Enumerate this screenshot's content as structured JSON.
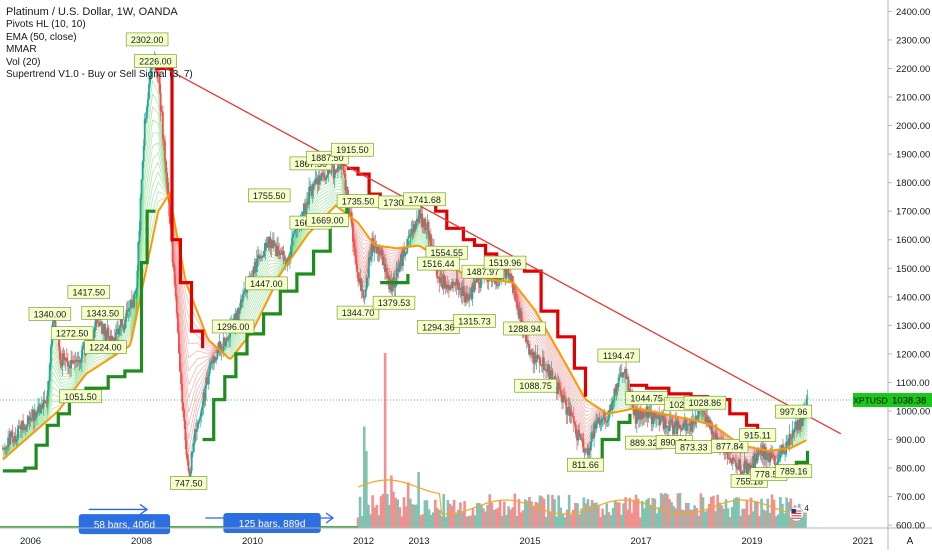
{
  "header": {
    "title": "Platinum / U.S. Dollar, 1W, OANDA",
    "indicators": [
      "Pivots HL (10, 10)",
      "EMA (50, close)",
      "MMAR",
      "Vol (20)",
      "Supertrend V1.0 - Buy or Sell Signal (3, 7)"
    ]
  },
  "colors": {
    "bull": "#26a69a",
    "bear": "#ef5350",
    "supertrend_up": "#1e8c1e",
    "supertrend_down": "#e00000",
    "ema": "#ff9800",
    "trendline": "#e53935",
    "price_line": "#22c922",
    "brand_blue": "#2962ff"
  },
  "chart_data": {
    "type": "candlestick",
    "symbol": "XPTUSD",
    "last_price": "1038.38",
    "price_axis": {
      "ticks": [
        "2400.00",
        "2300.00",
        "2200.00",
        "2100.00",
        "2000.00",
        "1900.00",
        "1800.00",
        "1700.00",
        "1600.00",
        "1500.00",
        "1400.00",
        "1300.00",
        "1200.00",
        "1100.00",
        "1000.00",
        "900.00",
        "800.00",
        "700.00",
        "600.00"
      ],
      "range": [
        590,
        2440
      ]
    },
    "time_axis": {
      "ticks": [
        "2006",
        "2008",
        "2010",
        "2012",
        "2013",
        "2015",
        "2017",
        "2019",
        "2021"
      ],
      "range": [
        2005.45,
        2021.45
      ]
    },
    "price_path": [
      [
        2005.5,
        870
      ],
      [
        2006.3,
        1030
      ],
      [
        2006.4,
        1340
      ],
      [
        2006.55,
        1180
      ],
      [
        2006.8,
        1150
      ],
      [
        2007.0,
        1230
      ],
      [
        2007.2,
        1310
      ],
      [
        2007.5,
        1240
      ],
      [
        2007.9,
        1400
      ],
      [
        2008.05,
        2000
      ],
      [
        2008.2,
        2250
      ],
      [
        2008.3,
        2180
      ],
      [
        2008.5,
        1700
      ],
      [
        2008.75,
        1000
      ],
      [
        2008.85,
        760
      ],
      [
        2009.0,
        960
      ],
      [
        2009.3,
        1190
      ],
      [
        2009.6,
        1280
      ],
      [
        2010.0,
        1480
      ],
      [
        2010.3,
        1600
      ],
      [
        2010.6,
        1520
      ],
      [
        2011.0,
        1750
      ],
      [
        2011.2,
        1820
      ],
      [
        2011.4,
        1830
      ],
      [
        2011.6,
        1870
      ],
      [
        2011.75,
        1700
      ],
      [
        2011.9,
        1480
      ],
      [
        2012.0,
        1400
      ],
      [
        2012.15,
        1580
      ],
      [
        2012.3,
        1560
      ],
      [
        2012.5,
        1420
      ],
      [
        2012.7,
        1540
      ],
      [
        2013.0,
        1680
      ],
      [
        2013.15,
        1640
      ],
      [
        2013.3,
        1500
      ],
      [
        2013.5,
        1430
      ],
      [
        2013.7,
        1440
      ],
      [
        2013.9,
        1380
      ],
      [
        2014.0,
        1440
      ],
      [
        2014.2,
        1480
      ],
      [
        2014.4,
        1460
      ],
      [
        2014.6,
        1500
      ],
      [
        2014.75,
        1400
      ],
      [
        2014.9,
        1250
      ],
      [
        2015.0,
        1200
      ],
      [
        2015.3,
        1150
      ],
      [
        2015.5,
        1080
      ],
      [
        2015.7,
        990
      ],
      [
        2015.9,
        900
      ],
      [
        2016.0,
        840
      ],
      [
        2016.2,
        960
      ],
      [
        2016.4,
        990
      ],
      [
        2016.6,
        1110
      ],
      [
        2016.7,
        1140
      ],
      [
        2016.9,
        980
      ],
      [
        2017.1,
        990
      ],
      [
        2017.4,
        960
      ],
      [
        2017.6,
        940
      ],
      [
        2017.9,
        950
      ],
      [
        2018.1,
        1000
      ],
      [
        2018.3,
        910
      ],
      [
        2018.6,
        850
      ],
      [
        2018.8,
        800
      ],
      [
        2019.0,
        810
      ],
      [
        2019.2,
        860
      ],
      [
        2019.4,
        820
      ],
      [
        2019.6,
        870
      ],
      [
        2019.75,
        940
      ],
      [
        2019.9,
        960
      ],
      [
        2020.0,
        1038
      ]
    ],
    "ema_path": [
      [
        2005.5,
        830
      ],
      [
        2006.5,
        1000
      ],
      [
        2007.0,
        1130
      ],
      [
        2007.8,
        1230
      ],
      [
        2008.3,
        1700
      ],
      [
        2008.5,
        1760
      ],
      [
        2008.8,
        1450
      ],
      [
        2009.2,
        1250
      ],
      [
        2009.6,
        1180
      ],
      [
        2010.0,
        1280
      ],
      [
        2010.5,
        1480
      ],
      [
        2011.0,
        1620
      ],
      [
        2011.5,
        1720
      ],
      [
        2011.9,
        1660
      ],
      [
        2012.2,
        1580
      ],
      [
        2012.6,
        1570
      ],
      [
        2013.0,
        1580
      ],
      [
        2013.4,
        1530
      ],
      [
        2013.8,
        1480
      ],
      [
        2014.3,
        1460
      ],
      [
        2014.7,
        1450
      ],
      [
        2015.1,
        1350
      ],
      [
        2015.6,
        1180
      ],
      [
        2016.0,
        1040
      ],
      [
        2016.4,
        990
      ],
      [
        2016.9,
        1010
      ],
      [
        2017.4,
        990
      ],
      [
        2017.9,
        970
      ],
      [
        2018.3,
        950
      ],
      [
        2018.8,
        880
      ],
      [
        2019.3,
        860
      ],
      [
        2019.7,
        870
      ],
      [
        2020.0,
        900
      ]
    ],
    "supertrend": [
      {
        "trend": "up",
        "points": [
          [
            2005.5,
            790
          ],
          [
            2005.9,
            800
          ],
          [
            2006.1,
            880
          ],
          [
            2006.3,
            950
          ],
          [
            2006.5,
            990
          ],
          [
            2006.7,
            1050
          ],
          [
            2007.0,
            1080
          ],
          [
            2007.4,
            1120
          ],
          [
            2007.7,
            1140
          ],
          [
            2008.0,
            1520
          ],
          [
            2008.1,
            1520
          ],
          [
            2008.1,
            1700
          ],
          [
            2008.25,
            1700
          ]
        ]
      },
      {
        "trend": "down",
        "points": [
          [
            2008.25,
            2200
          ],
          [
            2008.4,
            2200
          ],
          [
            2008.55,
            1600
          ],
          [
            2008.7,
            1450
          ],
          [
            2008.9,
            1280
          ],
          [
            2009.1,
            1220
          ]
        ]
      },
      {
        "trend": "up",
        "points": [
          [
            2009.1,
            900
          ],
          [
            2009.3,
            1040
          ],
          [
            2009.5,
            1120
          ],
          [
            2009.7,
            1200
          ],
          [
            2009.9,
            1270
          ],
          [
            2010.2,
            1340
          ],
          [
            2010.5,
            1420
          ],
          [
            2010.8,
            1480
          ],
          [
            2011.1,
            1560
          ],
          [
            2011.4,
            1650
          ],
          [
            2011.7,
            1720
          ]
        ]
      },
      {
        "trend": "down",
        "points": [
          [
            2011.7,
            1850
          ],
          [
            2011.9,
            1830
          ],
          [
            2012.1,
            1760
          ],
          [
            2012.3,
            1730
          ]
        ]
      },
      {
        "trend": "up",
        "points": [
          [
            2012.3,
            1450
          ],
          [
            2012.6,
            1450
          ],
          [
            2012.8,
            1480
          ]
        ]
      },
      {
        "trend": "down",
        "points": [
          [
            2012.8,
            1740
          ],
          [
            2013.1,
            1730
          ],
          [
            2013.3,
            1700
          ],
          [
            2013.5,
            1640
          ],
          [
            2013.8,
            1600
          ],
          [
            2014.0,
            1580
          ],
          [
            2014.2,
            1550
          ],
          [
            2014.4,
            1530
          ],
          [
            2014.6,
            1520
          ],
          [
            2014.9,
            1490
          ],
          [
            2015.2,
            1350
          ],
          [
            2015.5,
            1260
          ],
          [
            2015.8,
            1150
          ],
          [
            2016.0,
            1050
          ]
        ]
      },
      {
        "trend": "up",
        "points": [
          [
            2016.0,
            820
          ],
          [
            2016.3,
            900
          ],
          [
            2016.6,
            960
          ],
          [
            2016.8,
            990
          ]
        ]
      },
      {
        "trend": "down",
        "points": [
          [
            2016.8,
            1090
          ],
          [
            2017.1,
            1080
          ],
          [
            2017.5,
            1060
          ],
          [
            2017.9,
            1050
          ],
          [
            2018.2,
            1040
          ],
          [
            2018.6,
            990
          ],
          [
            2018.9,
            950
          ],
          [
            2019.1,
            920
          ],
          [
            2019.3,
            900
          ]
        ]
      },
      {
        "trend": "up",
        "points": [
          [
            2019.3,
            780
          ],
          [
            2019.6,
            790
          ],
          [
            2019.8,
            820
          ],
          [
            2020.0,
            860
          ]
        ]
      }
    ],
    "trendline": {
      "from": [
        2008.3,
        2215
      ],
      "to": [
        2020.6,
        920
      ]
    },
    "pivots": [
      {
        "label": "2302.00",
        "x": 2008.1,
        "y": 2302
      },
      {
        "label": "2226.00",
        "x": 2008.25,
        "y": 2226
      },
      {
        "label": "1417.50",
        "x": 2007.05,
        "y": 1417.5
      },
      {
        "label": "1343.50",
        "x": 2007.3,
        "y": 1343.5
      },
      {
        "label": "1340.00",
        "x": 2006.35,
        "y": 1340
      },
      {
        "label": "1272.50",
        "x": 2006.75,
        "y": 1272.5
      },
      {
        "label": "1224.00",
        "x": 2007.35,
        "y": 1224
      },
      {
        "label": "1051.50",
        "x": 2006.9,
        "y": 1051.5
      },
      {
        "label": "747.50",
        "x": 2008.85,
        "y": 747.5
      },
      {
        "label": "1296.00",
        "x": 2009.65,
        "y": 1296
      },
      {
        "label": "1755.50",
        "x": 2010.3,
        "y": 1755.5
      },
      {
        "label": "1447.00",
        "x": 2010.25,
        "y": 1447
      },
      {
        "label": "1867.50",
        "x": 2011.05,
        "y": 1867.5
      },
      {
        "label": "1887.50",
        "x": 2011.35,
        "y": 1887.5
      },
      {
        "label": "1915.50",
        "x": 2011.8,
        "y": 1915.5
      },
      {
        "label": "1660.00",
        "x": 2011.05,
        "y": 1660
      },
      {
        "label": "1669.00",
        "x": 2011.35,
        "y": 1669
      },
      {
        "label": "1735.50",
        "x": 2011.9,
        "y": 1735.5
      },
      {
        "label": "1344.70",
        "x": 2011.9,
        "y": 1344.7
      },
      {
        "label": "1379.53",
        "x": 2012.55,
        "y": 1379.53
      },
      {
        "label": "1730.51",
        "x": 2012.65,
        "y": 1730.51
      },
      {
        "label": "1741.68",
        "x": 2013.1,
        "y": 1741.68
      },
      {
        "label": "1554.55",
        "x": 2013.5,
        "y": 1554.55
      },
      {
        "label": "1516.44",
        "x": 2013.35,
        "y": 1516.44
      },
      {
        "label": "1294.36",
        "x": 2013.35,
        "y": 1294.36
      },
      {
        "label": "1315.73",
        "x": 2014.0,
        "y": 1315.73
      },
      {
        "label": "1487.97",
        "x": 2014.15,
        "y": 1487.97
      },
      {
        "label": "1519.96",
        "x": 2014.55,
        "y": 1519.96
      },
      {
        "label": "1288.94",
        "x": 2014.9,
        "y": 1288.94
      },
      {
        "label": "1088.75",
        "x": 2015.1,
        "y": 1088.75
      },
      {
        "label": "811.66",
        "x": 2016.0,
        "y": 811.66
      },
      {
        "label": "1194.47",
        "x": 2016.6,
        "y": 1194.47
      },
      {
        "label": "1044.75",
        "x": 2017.1,
        "y": 1044.75
      },
      {
        "label": "1023.25",
        "x": 2017.8,
        "y": 1023.25
      },
      {
        "label": "1028.86",
        "x": 2018.15,
        "y": 1028.86
      },
      {
        "label": "889.32",
        "x": 2017.05,
        "y": 889.32
      },
      {
        "label": "890.91",
        "x": 2017.6,
        "y": 890.91
      },
      {
        "label": "873.33",
        "x": 2017.95,
        "y": 873.33
      },
      {
        "label": "877.84",
        "x": 2018.6,
        "y": 877.84
      },
      {
        "label": "915.11",
        "x": 2019.1,
        "y": 915.11
      },
      {
        "label": "755.18",
        "x": 2018.95,
        "y": 755.18
      },
      {
        "label": "778.50",
        "x": 2019.3,
        "y": 778.5
      },
      {
        "label": "789.16",
        "x": 2019.75,
        "y": 789.16
      },
      {
        "label": "997.96",
        "x": 2019.75,
        "y": 997.96
      }
    ],
    "volume_start": 2011.9,
    "annotations": [
      {
        "label": "58 bars, 406d",
        "from": 2007.05,
        "to": 2008.1,
        "arrow_price": 655,
        "box_price": 600
      },
      {
        "label": "125 bars, 889d",
        "from": 2009.15,
        "to": 2011.45,
        "arrow_price": 625,
        "box_price": 604
      }
    ],
    "badge_count": "4"
  },
  "footer": {
    "corner_label": "A"
  }
}
